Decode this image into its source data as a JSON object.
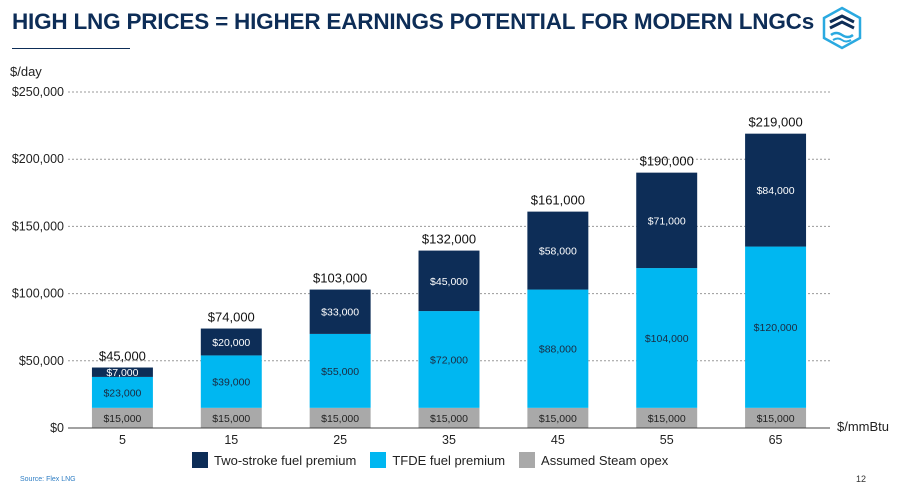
{
  "title": "HIGH LNG PRICES = HIGHER EARNINGS POTENTIAL FOR MODERN LNGCs",
  "source": "Source: Flex LNG",
  "page_number": "12",
  "colors": {
    "title": "#0d2d57",
    "two_stroke": "#0d2d57",
    "tfde": "#00b7f1",
    "steam": "#a9a9a9"
  },
  "logo": {
    "icon": "flex-lng-logo-icon"
  },
  "chart_data": {
    "type": "bar",
    "stacked": true,
    "ylabel": "$/day",
    "xlabel": "$/mmBtu",
    "ylim": [
      0,
      250000
    ],
    "yticks": [
      0,
      50000,
      100000,
      150000,
      200000,
      250000
    ],
    "ytick_labels": [
      "$0",
      "$50,000",
      "$100,000",
      "$150,000",
      "$200,000",
      "$250,000"
    ],
    "grid": true,
    "legend_position": "bottom",
    "categories": [
      "5",
      "15",
      "25",
      "35",
      "45",
      "55",
      "65"
    ],
    "series": [
      {
        "name": "Assumed Steam opex",
        "values": [
          15000,
          15000,
          15000,
          15000,
          15000,
          15000,
          15000
        ],
        "labels": [
          "$15,000",
          "$15,000",
          "$15,000",
          "$15,000",
          "$15,000",
          "$15,000",
          "$15,000"
        ]
      },
      {
        "name": "TFDE fuel premium",
        "values": [
          23000,
          39000,
          55000,
          72000,
          88000,
          104000,
          120000
        ],
        "labels": [
          "$23,000",
          "$39,000",
          "$55,000",
          "$72,000",
          "$88,000",
          "$104,000",
          "$120,000"
        ]
      },
      {
        "name": "Two-stroke fuel premium",
        "values": [
          7000,
          20000,
          33000,
          45000,
          58000,
          71000,
          84000
        ],
        "labels": [
          "$7,000",
          "$20,000",
          "$33,000",
          "$45,000",
          "$58,000",
          "$71,000",
          "$84,000"
        ]
      }
    ],
    "totals": [
      45000,
      74000,
      103000,
      132000,
      161000,
      190000,
      219000
    ],
    "total_labels": [
      "$45,000",
      "$74,000",
      "$103,000",
      "$132,000",
      "$161,000",
      "$190,000",
      "$219,000"
    ]
  }
}
